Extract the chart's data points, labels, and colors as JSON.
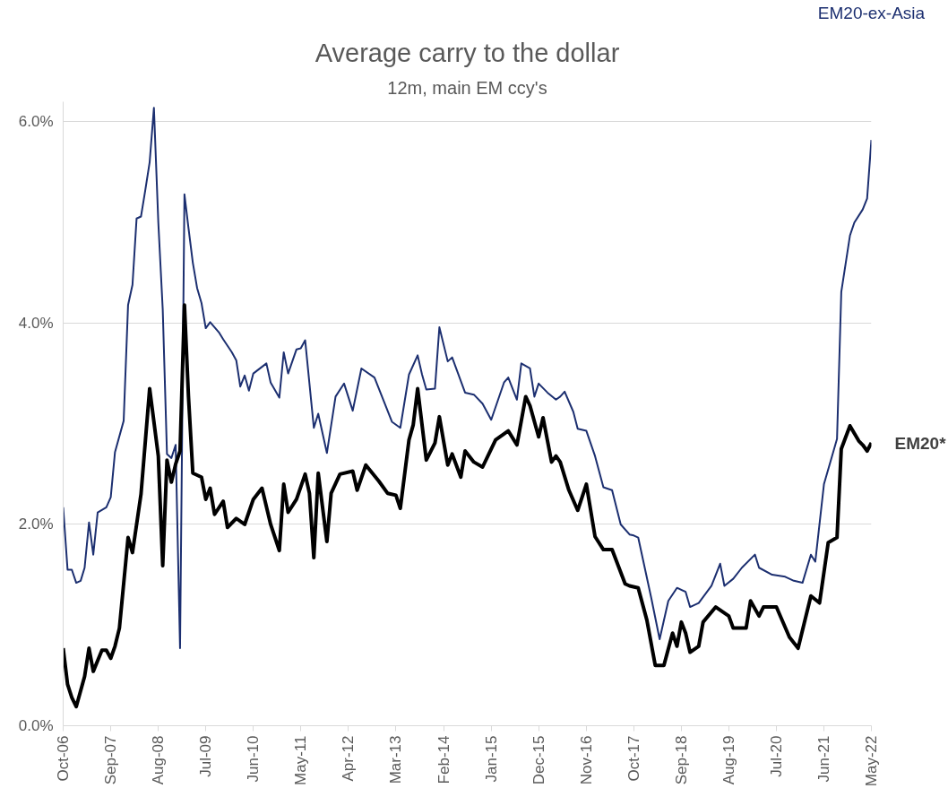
{
  "chart_data": {
    "type": "line",
    "title": "Average carry to the dollar",
    "subtitle": "12m, main EM ccy's",
    "xlim": [
      "2006-10",
      "2022-05"
    ],
    "ylim": [
      0,
      6.2
    ],
    "xticks": [
      {
        "value": "2006-10",
        "label": "Oct-06"
      },
      {
        "value": "2007-09",
        "label": "Sep-07"
      },
      {
        "value": "2008-08",
        "label": "Aug-08"
      },
      {
        "value": "2009-07",
        "label": "Jul-09"
      },
      {
        "value": "2010-06",
        "label": "Jun-10"
      },
      {
        "value": "2011-05",
        "label": "May-11"
      },
      {
        "value": "2012-04",
        "label": "Apr-12"
      },
      {
        "value": "2013-03",
        "label": "Mar-13"
      },
      {
        "value": "2014-02",
        "label": "Feb-14"
      },
      {
        "value": "2015-01",
        "label": "Jan-15"
      },
      {
        "value": "2015-12",
        "label": "Dec-15"
      },
      {
        "value": "2016-11",
        "label": "Nov-16"
      },
      {
        "value": "2017-10",
        "label": "Oct-17"
      },
      {
        "value": "2018-09",
        "label": "Sep-18"
      },
      {
        "value": "2019-08",
        "label": "Aug-19"
      },
      {
        "value": "2020-07",
        "label": "Jul-20"
      },
      {
        "value": "2021-06",
        "label": "Jun-21"
      },
      {
        "value": "2022-05",
        "label": "May-22"
      }
    ],
    "yticks": [
      {
        "value": 0,
        "label": "0.0%"
      },
      {
        "value": 2,
        "label": "2.0%"
      },
      {
        "value": 4,
        "label": "4.0%"
      },
      {
        "value": 6,
        "label": "6.0%"
      }
    ],
    "grid": "y",
    "legend": false,
    "line_style": "solid",
    "marker": "none",
    "series": [
      {
        "name": "EM20-ex-Asia",
        "color": "#1c2f70",
        "x": [
          "2006-10",
          "2006-11",
          "2006-12",
          "2007-01",
          "2007-02",
          "2007-03",
          "2007-04",
          "2007-05",
          "2007-06",
          "2007-08",
          "2007-09",
          "2007-10",
          "2007-12",
          "2008-01",
          "2008-02",
          "2008-03",
          "2008-04",
          "2008-05",
          "2008-06",
          "2008-07",
          "2008-08",
          "2008-09",
          "2008-10",
          "2008-11",
          "2008-12",
          "2009-01",
          "2009-02",
          "2009-03",
          "2009-04",
          "2009-05",
          "2009-06",
          "2009-07",
          "2009-08",
          "2009-10",
          "2009-11",
          "2010-01",
          "2010-02",
          "2010-03",
          "2010-04",
          "2010-05",
          "2010-06",
          "2010-09",
          "2010-10",
          "2010-12",
          "2011-01",
          "2011-02",
          "2011-04",
          "2011-05",
          "2011-06",
          "2011-08",
          "2011-09",
          "2011-11",
          "2012-01",
          "2012-03",
          "2012-05",
          "2012-07",
          "2012-10",
          "2013-02",
          "2013-04",
          "2013-06",
          "2013-08",
          "2013-09",
          "2013-10",
          "2013-12",
          "2014-01",
          "2014-03",
          "2014-04",
          "2014-07",
          "2014-09",
          "2014-11",
          "2015-01",
          "2015-04",
          "2015-05",
          "2015-07",
          "2015-08",
          "2015-10",
          "2015-11",
          "2015-12",
          "2016-02",
          "2016-04",
          "2016-05",
          "2016-06",
          "2016-08",
          "2016-09",
          "2016-11",
          "2017-01",
          "2017-03",
          "2017-05",
          "2017-07",
          "2017-09",
          "2017-10",
          "2017-11",
          "2018-02",
          "2018-04",
          "2018-06",
          "2018-08",
          "2018-10",
          "2018-11",
          "2019-01",
          "2019-04",
          "2019-06",
          "2019-07",
          "2019-09",
          "2019-11",
          "2020-02",
          "2020-03",
          "2020-06",
          "2020-09",
          "2020-11",
          "2021-01",
          "2021-03",
          "2021-04",
          "2021-06",
          "2021-09",
          "2021-10",
          "2021-12",
          "2022-01",
          "2022-03",
          "2022-04",
          "2022-05"
        ],
        "values": [
          2.17,
          1.55,
          1.55,
          1.42,
          1.44,
          1.57,
          2.02,
          1.7,
          2.12,
          2.17,
          2.27,
          2.72,
          3.03,
          4.18,
          4.38,
          5.04,
          5.06,
          5.32,
          5.6,
          6.14,
          5.0,
          4.14,
          2.7,
          2.66,
          2.79,
          0.77,
          5.28,
          4.95,
          4.6,
          4.35,
          4.2,
          3.95,
          4.01,
          3.91,
          3.84,
          3.71,
          3.63,
          3.37,
          3.48,
          3.33,
          3.5,
          3.6,
          3.41,
          3.26,
          3.71,
          3.5,
          3.74,
          3.75,
          3.83,
          2.96,
          3.1,
          2.71,
          3.27,
          3.4,
          3.13,
          3.55,
          3.46,
          3.02,
          2.96,
          3.49,
          3.68,
          3.49,
          3.34,
          3.35,
          3.96,
          3.62,
          3.66,
          3.31,
          3.29,
          3.2,
          3.04,
          3.41,
          3.46,
          3.24,
          3.6,
          3.55,
          3.27,
          3.4,
          3.31,
          3.24,
          3.27,
          3.32,
          3.12,
          2.95,
          2.93,
          2.68,
          2.37,
          2.34,
          2.0,
          1.9,
          1.89,
          1.87,
          1.27,
          0.86,
          1.24,
          1.37,
          1.33,
          1.18,
          1.22,
          1.39,
          1.61,
          1.39,
          1.46,
          1.57,
          1.7,
          1.57,
          1.5,
          1.48,
          1.44,
          1.42,
          1.7,
          1.63,
          2.4,
          2.85,
          4.31,
          4.87,
          5.0,
          5.13,
          5.24,
          5.82
        ]
      },
      {
        "name": "EM20*",
        "color": "#000000",
        "x": [
          "2006-10",
          "2006-11",
          "2006-12",
          "2007-01",
          "2007-03",
          "2007-04",
          "2007-05",
          "2007-07",
          "2007-08",
          "2007-09",
          "2007-10",
          "2007-11",
          "2008-01",
          "2008-02",
          "2008-04",
          "2008-06",
          "2008-08",
          "2008-09",
          "2008-10",
          "2008-11",
          "2008-12",
          "2009-01",
          "2009-02",
          "2009-03",
          "2009-04",
          "2009-06",
          "2009-07",
          "2009-08",
          "2009-09",
          "2009-11",
          "2009-12",
          "2010-02",
          "2010-04",
          "2010-06",
          "2010-08",
          "2010-10",
          "2010-12",
          "2011-01",
          "2011-02",
          "2011-04",
          "2011-06",
          "2011-07",
          "2011-08",
          "2011-09",
          "2011-11",
          "2011-12",
          "2012-02",
          "2012-05",
          "2012-06",
          "2012-08",
          "2012-11",
          "2013-01",
          "2013-03",
          "2013-04",
          "2013-06",
          "2013-07",
          "2013-08",
          "2013-10",
          "2013-12",
          "2014-01",
          "2014-03",
          "2014-04",
          "2014-06",
          "2014-07",
          "2014-09",
          "2014-11",
          "2015-02",
          "2015-05",
          "2015-07",
          "2015-09",
          "2015-10",
          "2015-12",
          "2016-01",
          "2016-03",
          "2016-04",
          "2016-05",
          "2016-07",
          "2016-09",
          "2016-11",
          "2017-01",
          "2017-03",
          "2017-05",
          "2017-08",
          "2017-09",
          "2017-11",
          "2018-01",
          "2018-03",
          "2018-05",
          "2018-07",
          "2018-08",
          "2018-09",
          "2018-10",
          "2018-11",
          "2019-01",
          "2019-02",
          "2019-05",
          "2019-08",
          "2019-09",
          "2019-12",
          "2020-01",
          "2020-03",
          "2020-04",
          "2020-07",
          "2020-10",
          "2020-12",
          "2021-03",
          "2021-05",
          "2021-07",
          "2021-09",
          "2021-10",
          "2021-12",
          "2022-02",
          "2022-03",
          "2022-04",
          "2022-05"
        ],
        "values": [
          0.77,
          0.41,
          0.28,
          0.19,
          0.49,
          0.77,
          0.54,
          0.75,
          0.75,
          0.67,
          0.79,
          0.97,
          1.87,
          1.72,
          2.3,
          3.35,
          2.68,
          1.59,
          2.64,
          2.42,
          2.6,
          2.73,
          4.18,
          3.28,
          2.51,
          2.47,
          2.25,
          2.36,
          2.1,
          2.23,
          1.97,
          2.06,
          2.0,
          2.25,
          2.36,
          2.0,
          1.74,
          2.4,
          2.12,
          2.25,
          2.5,
          2.31,
          1.67,
          2.51,
          1.83,
          2.31,
          2.5,
          2.53,
          2.34,
          2.59,
          2.43,
          2.31,
          2.29,
          2.16,
          2.84,
          2.99,
          3.35,
          2.64,
          2.81,
          3.07,
          2.59,
          2.7,
          2.47,
          2.73,
          2.62,
          2.57,
          2.84,
          2.93,
          2.79,
          3.27,
          3.18,
          2.87,
          3.06,
          2.62,
          2.68,
          2.62,
          2.34,
          2.14,
          2.4,
          1.88,
          1.75,
          1.75,
          1.41,
          1.39,
          1.37,
          1.05,
          0.6,
          0.6,
          0.92,
          0.79,
          1.03,
          0.92,
          0.73,
          0.79,
          1.03,
          1.18,
          1.09,
          0.97,
          0.97,
          1.24,
          1.09,
          1.18,
          1.18,
          0.88,
          0.77,
          1.29,
          1.22,
          1.82,
          1.87,
          2.75,
          2.98,
          2.83,
          2.79,
          2.73,
          2.81
        ]
      }
    ]
  }
}
